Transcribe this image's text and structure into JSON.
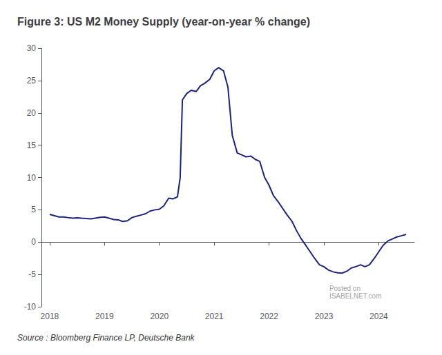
{
  "chart_data": {
    "type": "line",
    "title": "Figure 3: US M2 Money Supply (year-on-year % change)",
    "source": "Source : Bloomberg Finance LP, Deutsche Bank",
    "color": "#1a237e",
    "grid": false,
    "xlim": [
      2017.85,
      2024.65
    ],
    "xticks": [
      2018,
      2019,
      2020,
      2021,
      2022,
      2023,
      2024
    ],
    "ylim": [
      -10,
      30
    ],
    "yticks": [
      -10,
      -5,
      0,
      5,
      10,
      15,
      20,
      25,
      30
    ],
    "annotations": [
      {
        "text": "Posted on",
        "x": 2023.1,
        "y": -7.2
      },
      {
        "text": "ISABELNET.com",
        "x": 2023.1,
        "y": -8.3
      }
    ],
    "x": [
      2018.0,
      2018.08,
      2018.17,
      2018.25,
      2018.33,
      2018.42,
      2018.5,
      2018.58,
      2018.67,
      2018.75,
      2018.83,
      2018.92,
      2019.0,
      2019.08,
      2019.17,
      2019.25,
      2019.33,
      2019.42,
      2019.5,
      2019.58,
      2019.67,
      2019.75,
      2019.83,
      2019.92,
      2020.0,
      2020.08,
      2020.17,
      2020.25,
      2020.33,
      2020.38,
      2020.42,
      2020.5,
      2020.58,
      2020.67,
      2020.75,
      2020.83,
      2020.92,
      2021.0,
      2021.08,
      2021.17,
      2021.25,
      2021.33,
      2021.42,
      2021.5,
      2021.58,
      2021.67,
      2021.75,
      2021.83,
      2021.92,
      2022.0,
      2022.08,
      2022.17,
      2022.25,
      2022.33,
      2022.42,
      2022.5,
      2022.58,
      2022.67,
      2022.75,
      2022.83,
      2022.92,
      2023.0,
      2023.08,
      2023.17,
      2023.25,
      2023.33,
      2023.42,
      2023.5,
      2023.58,
      2023.67,
      2023.75,
      2023.83,
      2023.92,
      2024.0,
      2024.08,
      2024.17,
      2024.25,
      2024.33,
      2024.42,
      2024.5
    ],
    "values": [
      4.3,
      4.1,
      3.9,
      3.9,
      3.8,
      3.7,
      3.75,
      3.7,
      3.65,
      3.6,
      3.7,
      3.85,
      3.9,
      3.7,
      3.5,
      3.45,
      3.2,
      3.3,
      3.8,
      4.0,
      4.2,
      4.4,
      4.8,
      5.0,
      5.1,
      5.6,
      6.8,
      6.7,
      7.0,
      10.0,
      22.0,
      23.0,
      23.5,
      23.3,
      24.2,
      24.6,
      25.2,
      26.5,
      27.0,
      26.5,
      24.0,
      16.5,
      13.8,
      13.5,
      13.2,
      13.3,
      12.8,
      12.5,
      10.0,
      8.8,
      7.2,
      6.2,
      5.2,
      4.2,
      3.2,
      1.8,
      0.6,
      -0.5,
      -1.5,
      -2.5,
      -3.5,
      -3.8,
      -4.3,
      -4.6,
      -4.75,
      -4.8,
      -4.5,
      -4.0,
      -3.8,
      -3.5,
      -3.8,
      -3.5,
      -2.5,
      -1.5,
      -0.5,
      0.2,
      0.5,
      0.8,
      1.0,
      1.2
    ]
  }
}
